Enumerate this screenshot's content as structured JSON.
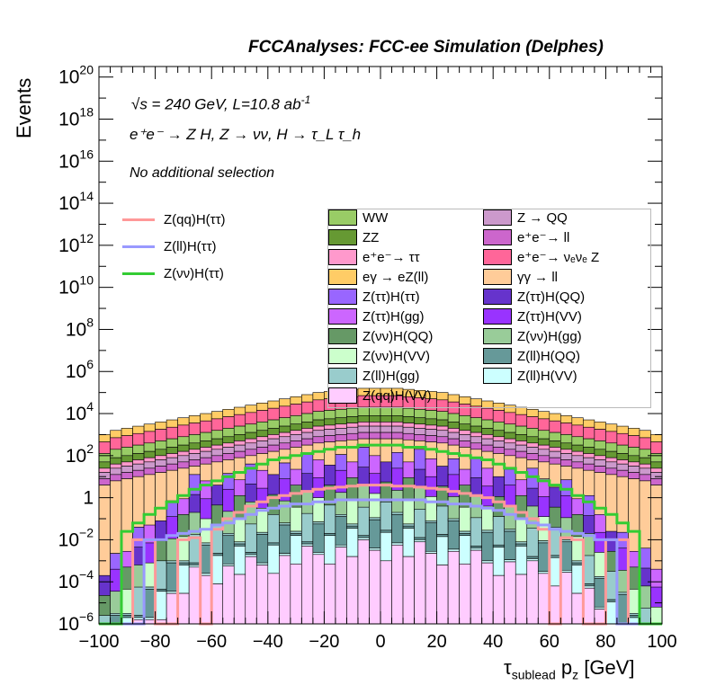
{
  "chart_data": {
    "type": "histogram",
    "title": "FCCAnalyses: FCC-ee Simulation (Delphes)",
    "xlabel": "τ_sublead p_z [GeV]",
    "xlabel_main": "τ",
    "xlabel_sub": "sublead",
    "xlabel_rest": " p",
    "xlabel_sub2": "z",
    "xlabel_unit": " [GeV]",
    "ylabel": "Events",
    "xlim": [
      -100,
      100
    ],
    "ylim": [
      1e-06,
      3e+20
    ],
    "log_y": true,
    "x_ticks": [
      "−100",
      "−80",
      "−60",
      "−40",
      "−20",
      "0",
      "20",
      "40",
      "60",
      "80",
      "100"
    ],
    "y_ticks": [
      "10^-6",
      "10^-4",
      "10^-2",
      "1",
      "10^2",
      "10^4",
      "10^6",
      "10^8",
      "10^10",
      "10^12",
      "10^14",
      "10^16",
      "10^18",
      "10^20"
    ],
    "annotations": {
      "energy": "√s = 240 GeV, L=10.8 ab",
      "energy_exp": "-1",
      "process": "e⁺e⁻ → Z H, Z → νν, H → τ_L τ_h",
      "selection": "No additional selection"
    },
    "stack_bins": 50,
    "stacked_backgrounds": [
      {
        "name": "WW",
        "color": "#99cc66"
      },
      {
        "name": "ZZ",
        "color": "#669933"
      },
      {
        "name": "e⁺e⁻→ ττ",
        "color": "#ff99cc"
      },
      {
        "name": "eγ → eZ(ll)",
        "color": "#ffcc66"
      },
      {
        "name": "Z(ττ)H(ττ)",
        "color": "#9966ff"
      },
      {
        "name": "Z(ττ)H(gg)",
        "color": "#cc66ff"
      },
      {
        "name": "Z(νν)H(QQ)",
        "color": "#669966"
      },
      {
        "name": "Z(νν)H(VV)",
        "color": "#ccffcc"
      },
      {
        "name": "Z(ll)H(gg)",
        "color": "#99cccc"
      },
      {
        "name": "Z(qq)H(VV)",
        "color": "#ffccff"
      },
      {
        "name": "Z → QQ",
        "color": "#cc99cc"
      },
      {
        "name": "e⁺e⁻→ ll",
        "color": "#cc66cc"
      },
      {
        "name": "e⁺e⁻→ νₑνₑ Z",
        "color": "#ff6699"
      },
      {
        "name": "γγ → ll",
        "color": "#ffcc99"
      },
      {
        "name": "Z(ττ)H(QQ)",
        "color": "#6633cc"
      },
      {
        "name": "Z(ττ)H(VV)",
        "color": "#9933ff"
      },
      {
        "name": "Z(νν)H(gg)",
        "color": "#99cc99"
      },
      {
        "name": "Z(ll)H(QQ)",
        "color": "#669999"
      },
      {
        "name": "Z(ll)H(VV)",
        "color": "#ccffff"
      }
    ],
    "envelope_log10": [
      3.0,
      3.2,
      3.3,
      3.4,
      3.5,
      3.6,
      3.7,
      3.8,
      3.9,
      4.0,
      4.1,
      4.2,
      4.3,
      4.4,
      4.5,
      4.6,
      4.7,
      4.8,
      4.9,
      5.0,
      5.05,
      5.1,
      5.15,
      5.2,
      5.2,
      5.2,
      5.2,
      5.15,
      5.1,
      5.05,
      5.0,
      4.9,
      4.8,
      4.7,
      4.6,
      4.5,
      4.4,
      4.3,
      4.2,
      4.1,
      4.0,
      3.9,
      3.8,
      3.7,
      3.6,
      3.5,
      3.4,
      3.3,
      3.2,
      3.0
    ],
    "signals": [
      {
        "name": "Z(qq)H(ττ)",
        "color": "#ff9999",
        "log10": [
          -9,
          -9,
          -9,
          -2.0,
          -2.0,
          -9,
          -9,
          -2.0,
          -1.9,
          -9,
          -1.5,
          -1.0,
          -0.7,
          -0.4,
          -0.2,
          0.0,
          0.1,
          0.2,
          0.3,
          0.4,
          0.45,
          0.5,
          0.55,
          0.6,
          0.6,
          0.6,
          0.55,
          0.55,
          0.5,
          0.45,
          0.4,
          0.3,
          0.2,
          0.1,
          0.0,
          -0.2,
          -0.4,
          -0.7,
          -1.0,
          -1.5,
          -9,
          -1.9,
          -2.0,
          -9,
          -9,
          -2.0,
          -2.0,
          -9,
          -9,
          -9
        ]
      },
      {
        "name": "Z(ll)H(ττ)",
        "color": "#9999ff",
        "log10": [
          -9,
          -9,
          -9,
          -9,
          -2.0,
          -2.0,
          -1.8,
          -1.7,
          -1.6,
          -1.5,
          -1.3,
          -1.2,
          -1.0,
          -0.8,
          -0.6,
          -0.5,
          -0.4,
          -0.3,
          -0.3,
          -0.2,
          -0.2,
          -0.1,
          -0.1,
          -0.1,
          -0.1,
          -0.1,
          -0.1,
          -0.1,
          -0.1,
          -0.2,
          -0.2,
          -0.3,
          -0.3,
          -0.4,
          -0.5,
          -0.6,
          -0.8,
          -1.0,
          -1.2,
          -1.3,
          -1.5,
          -1.6,
          -1.7,
          -1.8,
          -2.0,
          -2.0,
          -9,
          -9,
          -9,
          -9
        ]
      },
      {
        "name": "Z(νν)H(ττ)",
        "color": "#33cc33",
        "log10": [
          -9,
          -9,
          -1.6,
          -1.2,
          -0.8,
          -0.5,
          -0.2,
          0.1,
          0.4,
          0.6,
          0.8,
          1.0,
          1.2,
          1.4,
          1.6,
          1.8,
          1.9,
          2.0,
          2.1,
          2.2,
          2.3,
          2.4,
          2.4,
          2.5,
          2.5,
          2.5,
          2.5,
          2.4,
          2.4,
          2.3,
          2.2,
          2.1,
          2.0,
          1.9,
          1.8,
          1.6,
          1.4,
          1.2,
          1.0,
          0.8,
          0.6,
          0.4,
          0.1,
          -0.2,
          -0.5,
          -0.8,
          -1.2,
          -1.6,
          -9,
          -9
        ]
      }
    ]
  }
}
